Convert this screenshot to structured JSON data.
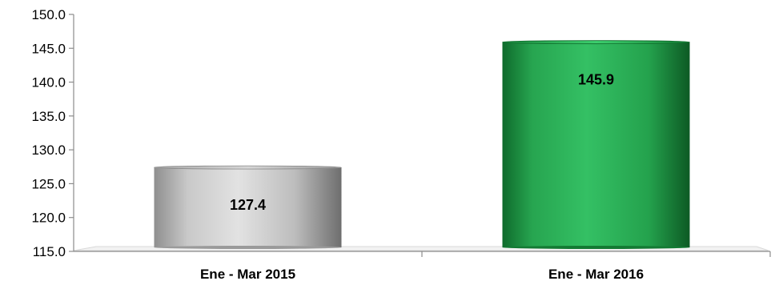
{
  "chart_data": {
    "type": "bar",
    "title": "",
    "xlabel": "",
    "ylabel": "",
    "categories": [
      "Ene - Mar 2015",
      "Ene - Mar 2016"
    ],
    "values": [
      127.4,
      145.9
    ],
    "data_labels": [
      "127.4",
      "145.9"
    ],
    "ylim": [
      115.0,
      150.0
    ],
    "yticks": [
      115.0,
      120.0,
      125.0,
      130.0,
      135.0,
      140.0,
      145.0,
      150.0
    ],
    "ytick_labels": [
      "115.0",
      "120.0",
      "125.0",
      "130.0",
      "135.0",
      "140.0",
      "145.0",
      "150.0"
    ],
    "grid": false,
    "legend": "none",
    "bar_colors": [
      "#c8c8c8",
      "#2db35a"
    ]
  }
}
